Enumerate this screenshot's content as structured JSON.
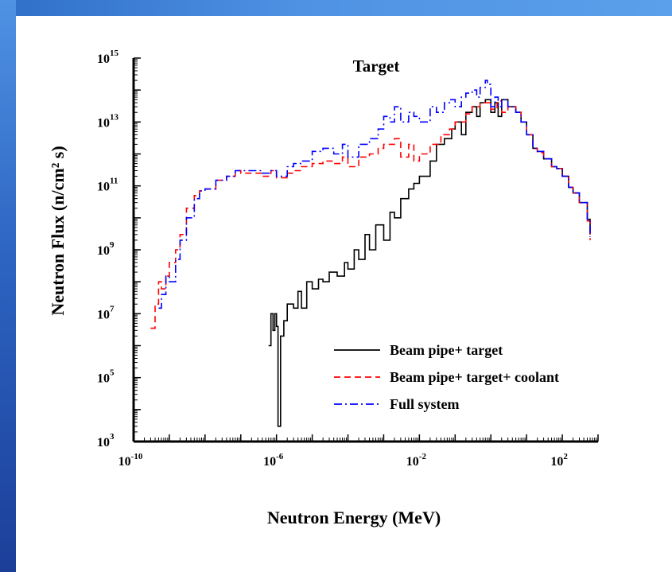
{
  "slide": {
    "frame_top_color": "#4f92e3",
    "frame_left_color": "#2d64c2"
  },
  "chart_data": {
    "type": "line",
    "title": "Target",
    "xlabel": "Neutron Energy (MeV)",
    "ylabel": "Neutron Flux  (n/cm² s)",
    "x_scale": "log",
    "y_scale": "log",
    "xlim": [
      1e-10,
      1000
    ],
    "ylim": [
      1000,
      1000000000000000.0
    ],
    "x_ticks": [
      {
        "base": "10",
        "exp": "-10",
        "value": 1e-10
      },
      {
        "base": "10",
        "exp": "-6",
        "value": 1e-06
      },
      {
        "base": "10",
        "exp": "-2",
        "value": 0.01
      },
      {
        "base": "10",
        "exp": "2",
        "value": 100
      }
    ],
    "y_ticks": [
      {
        "base": "10",
        "exp": "3",
        "value": 1000.0
      },
      {
        "base": "10",
        "exp": "5",
        "value": 100000.0
      },
      {
        "base": "10",
        "exp": "7",
        "value": 10000000.0
      },
      {
        "base": "10",
        "exp": "9",
        "value": 1000000000.0
      },
      {
        "base": "10",
        "exp": "11",
        "value": 100000000000.0
      },
      {
        "base": "10",
        "exp": "13",
        "value": 10000000000000.0
      },
      {
        "base": "10",
        "exp": "15",
        "value": 1000000000000000.0
      }
    ],
    "grid": false,
    "legend_position": "bottom-right",
    "series": [
      {
        "name": "Beam pipe+ target",
        "color": "#000000",
        "dash": "solid",
        "points": [
          [
            6e-07,
            1000000.0
          ],
          [
            7e-07,
            10000000.0
          ],
          [
            8e-07,
            3000000.0
          ],
          [
            9e-07,
            10000000.0
          ],
          [
            1e-06,
            4000000.0
          ],
          [
            1.1e-06,
            3000.0
          ],
          [
            1.3e-06,
            2000000.0
          ],
          [
            1.6e-06,
            6000000.0
          ],
          [
            2e-06,
            20000000.0
          ],
          [
            3e-06,
            15000000.0
          ],
          [
            4e-06,
            50000000.0
          ],
          [
            5e-06,
            15000000.0
          ],
          [
            7e-06,
            100000000.0
          ],
          [
            1e-05,
            60000000.0
          ],
          [
            1.5e-05,
            120000000.0
          ],
          [
            2e-05,
            100000000.0
          ],
          [
            3e-05,
            200000000.0
          ],
          [
            5e-05,
            150000000.0
          ],
          [
            8e-05,
            400000000.0
          ],
          [
            0.0001,
            250000000.0
          ],
          [
            0.00015,
            1000000000.0
          ],
          [
            0.0002,
            500000000.0
          ],
          [
            0.0003,
            3000000000.0
          ],
          [
            0.0004,
            1000000000.0
          ],
          [
            0.0006,
            6000000000.0
          ],
          [
            0.001,
            2000000000.0
          ],
          [
            0.0015,
            15000000000.0
          ],
          [
            0.002,
            10000000000.0
          ],
          [
            0.003,
            40000000000.0
          ],
          [
            0.005,
            80000000000.0
          ],
          [
            0.007,
            120000000000.0
          ],
          [
            0.01,
            200000000000.0
          ],
          [
            0.02,
            600000000000.0
          ],
          [
            0.03,
            2000000000000.0
          ],
          [
            0.05,
            3000000000000.0
          ],
          [
            0.08,
            6000000000000.0
          ],
          [
            0.1,
            10000000000000.0
          ],
          [
            0.15,
            4000000000000.0
          ],
          [
            0.2,
            20000000000000.0
          ],
          [
            0.3,
            30000000000000.0
          ],
          [
            0.4,
            15000000000000.0
          ],
          [
            0.5,
            40000000000000.0
          ],
          [
            0.7,
            50000000000000.0
          ],
          [
            1.0,
            20000000000000.0
          ],
          [
            1.3,
            40000000000000.0
          ],
          [
            1.6,
            15000000000000.0
          ],
          [
            2.0,
            50000000000000.0
          ],
          [
            3.0,
            30000000000000.0
          ],
          [
            5.0,
            20000000000000.0
          ],
          [
            7.0,
            10000000000000.0
          ],
          [
            10,
            4000000000000.0
          ],
          [
            15,
            1500000000000.0
          ],
          [
            20,
            1200000000000.0
          ],
          [
            30,
            700000000000.0
          ],
          [
            50,
            400000000000.0
          ],
          [
            70,
            350000000000.0
          ],
          [
            100,
            200000000000.0
          ],
          [
            150,
            90000000000.0
          ],
          [
            200,
            60000000000.0
          ],
          [
            300,
            30000000000.0
          ],
          [
            500,
            9000000000.0
          ],
          [
            600,
            3000000000.0
          ]
        ]
      },
      {
        "name": "Beam pipe+ target+ coolant",
        "color": "#ff0000",
        "dash": "dashed",
        "points": [
          [
            3e-10,
            3500000.0
          ],
          [
            4e-10,
            20000000.0
          ],
          [
            5e-10,
            100000000.0
          ],
          [
            6e-10,
            60000000.0
          ],
          [
            8e-10,
            150000000.0
          ],
          [
            1e-09,
            400000000.0
          ],
          [
            1.5e-09,
            1000000000.0
          ],
          [
            2e-09,
            3000000000.0
          ],
          [
            3e-09,
            20000000000.0
          ],
          [
            5e-09,
            50000000000.0
          ],
          [
            7e-09,
            70000000000.0
          ],
          [
            1e-08,
            80000000000.0
          ],
          [
            2e-08,
            150000000000.0
          ],
          [
            4e-08,
            200000000000.0
          ],
          [
            7e-08,
            300000000000.0
          ],
          [
            1e-07,
            250000000000.0
          ],
          [
            2e-07,
            250000000000.0
          ],
          [
            4e-07,
            200000000000.0
          ],
          [
            7e-07,
            300000000000.0
          ],
          [
            1e-06,
            180000000000.0
          ],
          [
            2e-06,
            250000000000.0
          ],
          [
            3e-06,
            300000000000.0
          ],
          [
            5e-06,
            400000000000.0
          ],
          [
            1e-05,
            500000000000.0
          ],
          [
            2e-05,
            600000000000.0
          ],
          [
            4e-05,
            500000000000.0
          ],
          [
            7e-05,
            800000000000.0
          ],
          [
            0.0001,
            400000000000.0
          ],
          [
            0.0002,
            800000000000.0
          ],
          [
            0.0004,
            1000000000000.0
          ],
          [
            0.0007,
            1500000000000.0
          ],
          [
            0.001,
            2000000000000.0
          ],
          [
            0.002,
            3000000000000.0
          ],
          [
            0.003,
            800000000000.0
          ],
          [
            0.005,
            2000000000000.0
          ],
          [
            0.007,
            600000000000.0
          ],
          [
            0.01,
            1000000000000.0
          ],
          [
            0.02,
            2000000000000.0
          ],
          [
            0.04,
            4000000000000.0
          ],
          [
            0.07,
            6000000000000.0
          ],
          [
            0.1,
            10000000000000.0
          ],
          [
            0.2,
            18000000000000.0
          ],
          [
            0.3,
            30000000000000.0
          ],
          [
            0.5,
            40000000000000.0
          ],
          [
            0.7,
            40000000000000.0
          ],
          [
            1.0,
            25000000000000.0
          ],
          [
            1.5,
            45000000000000.0
          ],
          [
            2.0,
            20000000000000.0
          ],
          [
            3.0,
            30000000000000.0
          ],
          [
            5.0,
            20000000000000.0
          ],
          [
            7.0,
            10000000000000.0
          ],
          [
            10,
            4000000000000.0
          ],
          [
            15,
            1500000000000.0
          ],
          [
            20,
            1100000000000.0
          ],
          [
            30,
            700000000000.0
          ],
          [
            50,
            400000000000.0
          ],
          [
            70,
            350000000000.0
          ],
          [
            100,
            200000000000.0
          ],
          [
            150,
            90000000000.0
          ],
          [
            200,
            60000000000.0
          ],
          [
            300,
            30000000000.0
          ],
          [
            500,
            8000000000.0
          ],
          [
            600,
            2000000000.0
          ]
        ]
      },
      {
        "name": "Full system",
        "color": "#0000ff",
        "dash": "dash-dot",
        "points": [
          [
            5e-10,
            15000000.0
          ],
          [
            6e-10,
            40000000.0
          ],
          [
            8e-10,
            150000000.0
          ],
          [
            1e-09,
            100000000.0
          ],
          [
            1.5e-09,
            500000000.0
          ],
          [
            2e-09,
            2000000000.0
          ],
          [
            3e-09,
            10000000000.0
          ],
          [
            5e-09,
            40000000000.0
          ],
          [
            7e-09,
            70000000000.0
          ],
          [
            1e-08,
            80000000000.0
          ],
          [
            2e-08,
            150000000000.0
          ],
          [
            4e-08,
            200000000000.0
          ],
          [
            7e-08,
            300000000000.0
          ],
          [
            1e-07,
            300000000000.0
          ],
          [
            2e-07,
            300000000000.0
          ],
          [
            4e-07,
            250000000000.0
          ],
          [
            7e-07,
            300000000000.0
          ],
          [
            1e-06,
            200000000000.0
          ],
          [
            2e-06,
            400000000000.0
          ],
          [
            3e-06,
            500000000000.0
          ],
          [
            5e-06,
            600000000000.0
          ],
          [
            1e-05,
            1200000000000.0
          ],
          [
            2e-05,
            1500000000000.0
          ],
          [
            4e-05,
            1000000000000.0
          ],
          [
            7e-05,
            2000000000000.0
          ],
          [
            0.0001,
            800000000000.0
          ],
          [
            0.0002,
            2000000000000.0
          ],
          [
            0.0004,
            3000000000000.0
          ],
          [
            0.0007,
            6000000000000.0
          ],
          [
            0.001,
            15000000000000.0
          ],
          [
            0.0015,
            10000000000000.0
          ],
          [
            0.002,
            30000000000000.0
          ],
          [
            0.003,
            10000000000000.0
          ],
          [
            0.005,
            20000000000000.0
          ],
          [
            0.007,
            15000000000000.0
          ],
          [
            0.01,
            10000000000000.0
          ],
          [
            0.02,
            30000000000000.0
          ],
          [
            0.03,
            20000000000000.0
          ],
          [
            0.05,
            40000000000000.0
          ],
          [
            0.07,
            50000000000000.0
          ],
          [
            0.1,
            30000000000000.0
          ],
          [
            0.15,
            60000000000000.0
          ],
          [
            0.2,
            80000000000000.0
          ],
          [
            0.3,
            100000000000000.0
          ],
          [
            0.4,
            60000000000000.0
          ],
          [
            0.5,
            120000000000000.0
          ],
          [
            0.7,
            200000000000000.0
          ],
          [
            0.8,
            150000000000000.0
          ],
          [
            1.0,
            30000000000000.0
          ],
          [
            1.3,
            60000000000000.0
          ],
          [
            1.6,
            30000000000000.0
          ],
          [
            2.0,
            50000000000000.0
          ],
          [
            3.0,
            30000000000000.0
          ],
          [
            5.0,
            20000000000000.0
          ],
          [
            7.0,
            10000000000000.0
          ],
          [
            10,
            4000000000000.0
          ],
          [
            15,
            1500000000000.0
          ],
          [
            20,
            1200000000000.0
          ],
          [
            30,
            700000000000.0
          ],
          [
            50,
            400000000000.0
          ],
          [
            70,
            350000000000.0
          ],
          [
            100,
            200000000000.0
          ],
          [
            150,
            90000000000.0
          ],
          [
            200,
            60000000000.0
          ],
          [
            300,
            30000000000.0
          ],
          [
            500,
            9000000000.0
          ],
          [
            600,
            2500000000.0
          ]
        ]
      }
    ]
  }
}
